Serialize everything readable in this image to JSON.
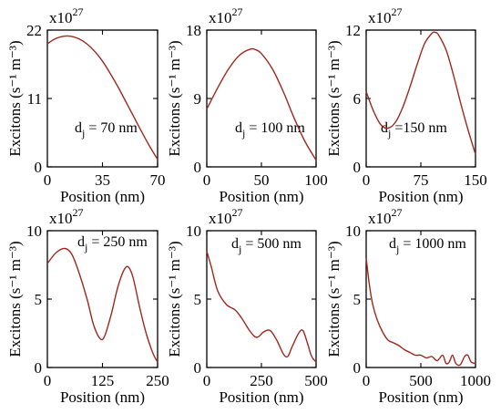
{
  "figure": {
    "curve_color": "#A0281E",
    "axis_color": "#000000"
  },
  "chart_data": [
    {
      "type": "line",
      "title": "",
      "annotation": {
        "label": "d",
        "sub": "j",
        "value": "= 70 nm"
      },
      "xlabel": "Position (nm)",
      "ylabel": "Excitons (s⁻¹ m⁻³)",
      "y_multiplier": "x10",
      "y_multiplier_exp": "27",
      "xlim": [
        0,
        70
      ],
      "ylim": [
        0,
        22
      ],
      "xticks": [
        0,
        35,
        70
      ],
      "yticks": [
        0,
        11,
        22
      ],
      "xtick_labels": [
        "0",
        "35",
        "70"
      ],
      "ytick_labels": [
        "0",
        "11",
        "22"
      ],
      "series": [
        {
          "x": [
            0,
            5,
            10,
            15,
            20,
            25,
            30,
            35,
            40,
            45,
            50,
            55,
            60,
            65,
            70
          ],
          "y": [
            19.8,
            20.6,
            21.0,
            21.0,
            20.6,
            19.8,
            18.6,
            17.0,
            15.0,
            12.8,
            10.4,
            8.0,
            5.6,
            3.3,
            1.2
          ]
        }
      ]
    },
    {
      "type": "line",
      "title": "",
      "annotation": {
        "label": "d",
        "sub": "j",
        "value": "= 100 nm"
      },
      "xlabel": "Position (nm)",
      "ylabel": "Excitons (s⁻¹ m⁻³)",
      "y_multiplier": "x10",
      "y_multiplier_exp": "27",
      "xlim": [
        0,
        100
      ],
      "ylim": [
        0,
        18
      ],
      "xticks": [
        0,
        50,
        100
      ],
      "yticks": [
        0,
        9,
        18
      ],
      "xtick_labels": [
        "0",
        "50",
        "100"
      ],
      "ytick_labels": [
        "0",
        "9",
        "18"
      ],
      "series": [
        {
          "x": [
            0,
            10,
            20,
            30,
            40,
            45,
            50,
            60,
            70,
            80,
            90,
            100
          ],
          "y": [
            7.6,
            10.4,
            12.9,
            14.7,
            15.5,
            15.4,
            14.9,
            12.9,
            9.9,
            6.4,
            3.3,
            0.9
          ]
        }
      ]
    },
    {
      "type": "line",
      "title": "",
      "annotation": {
        "label": "d",
        "sub": "j",
        "value": "=150 nm"
      },
      "xlabel": "Position (nm)",
      "ylabel": "Excitons (s⁻¹ m⁻³)",
      "y_multiplier": "x10",
      "y_multiplier_exp": "27",
      "xlim": [
        0,
        150
      ],
      "ylim": [
        0,
        12
      ],
      "xticks": [
        0,
        75,
        150
      ],
      "yticks": [
        0,
        6,
        12
      ],
      "xtick_labels": [
        "0",
        "75",
        "150"
      ],
      "ytick_labels": [
        "0",
        "6",
        "12"
      ],
      "series": [
        {
          "x": [
            0,
            10,
            20,
            30,
            40,
            50,
            60,
            70,
            80,
            90,
            95,
            100,
            110,
            120,
            130,
            140,
            150
          ],
          "y": [
            6.6,
            4.9,
            3.7,
            3.4,
            3.9,
            5.2,
            7.0,
            9.0,
            10.8,
            11.7,
            11.8,
            11.5,
            10.2,
            8.0,
            5.5,
            3.2,
            1.1
          ]
        }
      ]
    },
    {
      "type": "line",
      "title": "",
      "annotation": {
        "label": "d",
        "sub": "j",
        "value": "= 250 nm"
      },
      "xlabel": "Position (nm)",
      "ylabel": "Excitons (s⁻¹ m⁻³)",
      "y_multiplier": "x10",
      "y_multiplier_exp": "27",
      "xlim": [
        0,
        250
      ],
      "ylim": [
        0,
        10
      ],
      "xticks": [
        0,
        125,
        250
      ],
      "yticks": [
        0,
        5,
        10
      ],
      "xtick_labels": [
        "0",
        "125",
        "250"
      ],
      "ytick_labels": [
        "0",
        "5",
        "10"
      ],
      "series": [
        {
          "x": [
            0,
            20,
            40,
            55,
            70,
            90,
            105,
            120,
            130,
            145,
            160,
            175,
            185,
            195,
            210,
            225,
            240,
            250
          ],
          "y": [
            7.6,
            8.4,
            8.7,
            8.3,
            7.1,
            5.0,
            3.1,
            2.1,
            2.3,
            3.9,
            5.9,
            7.2,
            7.3,
            6.5,
            4.3,
            2.4,
            1.0,
            0.4
          ]
        }
      ]
    },
    {
      "type": "line",
      "title": "",
      "annotation": {
        "label": "d",
        "sub": "j",
        "value": "= 500 nm"
      },
      "xlabel": "Position (nm)",
      "ylabel": "Excitons (s⁻¹ m⁻³)",
      "y_multiplier": "x10",
      "y_multiplier_exp": "27",
      "xlim": [
        0,
        500
      ],
      "ylim": [
        0,
        10
      ],
      "xticks": [
        0,
        250,
        500
      ],
      "yticks": [
        0,
        5,
        10
      ],
      "xtick_labels": [
        "0",
        "250",
        "500"
      ],
      "ytick_labels": [
        "0",
        "5",
        "10"
      ],
      "series": [
        {
          "x": [
            0,
            20,
            50,
            90,
            130,
            160,
            200,
            230,
            260,
            290,
            320,
            350,
            370,
            390,
            420,
            440,
            460,
            480,
            500
          ],
          "y": [
            8.5,
            7.4,
            5.6,
            4.6,
            4.2,
            3.6,
            2.6,
            2.2,
            2.6,
            2.7,
            2.0,
            1.0,
            0.8,
            1.5,
            2.5,
            2.7,
            1.8,
            0.8,
            0.4
          ]
        }
      ]
    },
    {
      "type": "line",
      "title": "",
      "annotation": {
        "label": "d",
        "sub": "j",
        "value": "= 1000 nm"
      },
      "xlabel": "Position (nm)",
      "ylabel": "Excitons (s⁻¹ m⁻³)",
      "y_multiplier": "x10",
      "y_multiplier_exp": "27",
      "xlim": [
        0,
        1000
      ],
      "ylim": [
        0,
        10
      ],
      "xticks": [
        0,
        500,
        1000
      ],
      "yticks": [
        0,
        5,
        10
      ],
      "xtick_labels": [
        "0",
        "500",
        "1000"
      ],
      "ytick_labels": [
        "0",
        "5",
        "10"
      ],
      "series": [
        {
          "x": [
            0,
            30,
            60,
            100,
            150,
            200,
            250,
            300,
            350,
            400,
            450,
            500,
            550,
            600,
            650,
            700,
            730,
            760,
            790,
            820,
            860,
            900,
            930,
            960,
            1000
          ],
          "y": [
            8.0,
            6.0,
            4.6,
            3.5,
            2.6,
            2.0,
            1.8,
            1.6,
            1.3,
            1.1,
            0.9,
            0.9,
            0.7,
            0.8,
            0.5,
            0.9,
            0.3,
            0.4,
            0.9,
            0.3,
            0.2,
            0.8,
            0.9,
            0.4,
            0.3
          ]
        }
      ]
    }
  ]
}
